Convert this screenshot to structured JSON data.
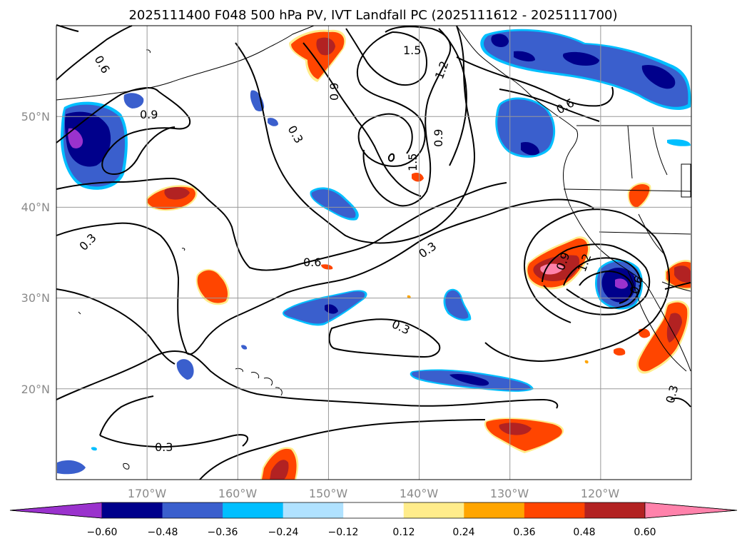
{
  "title": "2025111400 F048 500 hPa PV, IVT Landfall PC (2025111612 - 2025111700)",
  "map": {
    "lon_range": [
      -180,
      -110
    ],
    "lat_range": [
      10,
      60
    ],
    "grid_lons": [
      -170,
      -160,
      -150,
      -140,
      -130,
      -120
    ],
    "grid_lats": [
      20,
      30,
      40,
      50
    ],
    "lon_labels": [
      "170°W",
      "160°W",
      "150°W",
      "140°W",
      "130°W",
      "120°W"
    ],
    "lat_labels": [
      "20°N",
      "30°N",
      "40°N",
      "50°N"
    ],
    "contour_labels": [
      "0.6",
      "0.9",
      "0.3",
      "0.9",
      "0.3",
      "1.5",
      "1.2",
      "1.5",
      "0.9",
      "0.6",
      "0.3",
      "0.6",
      "0.3",
      "0.9",
      "1.2",
      "0.6",
      "0.3",
      "0.3"
    ]
  },
  "colorbar": {
    "colors": [
      "#9a32cd",
      "#00008b",
      "#3a5fcd",
      "#00bfff",
      "#b0e2ff",
      "#ffffff",
      "#ffec8b",
      "#ffa500",
      "#ff4500",
      "#b22222",
      "#ff82ab"
    ],
    "tick_labels": [
      "−0.60",
      "−0.48",
      "−0.36",
      "−0.24",
      "−0.12",
      "0.12",
      "0.24",
      "0.36",
      "0.48",
      "0.60"
    ]
  },
  "colors": {
    "purple": "#9a32cd",
    "navy": "#00008b",
    "royal": "#3a5fcd",
    "sky": "#00bfff",
    "lightblue": "#b0e2ff",
    "yellow": "#ffec8b",
    "orange": "#ffa500",
    "redorange": "#ff4500",
    "firebrick": "#b22222",
    "pink": "#ff82ab"
  }
}
